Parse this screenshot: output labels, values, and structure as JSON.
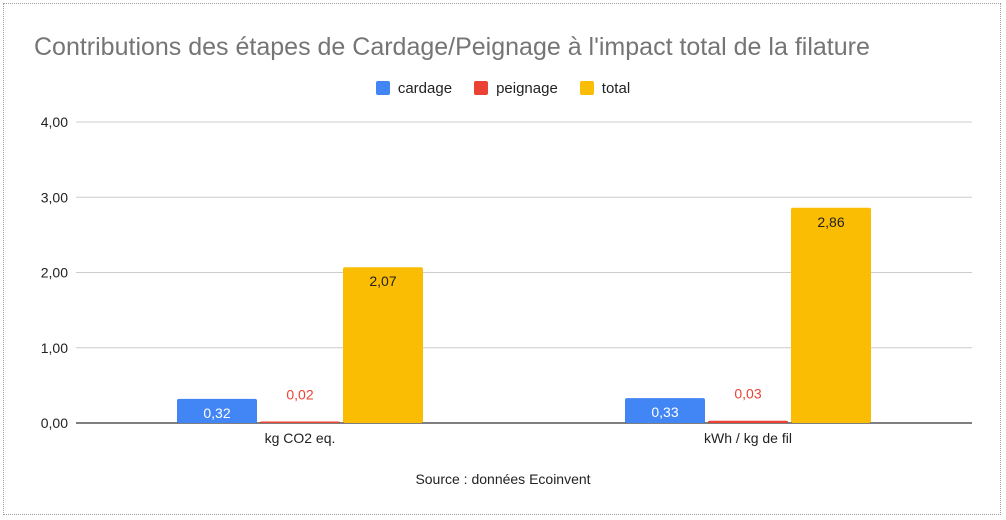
{
  "chart_data": {
    "type": "bar",
    "title": "Contributions des étapes de Cardage/Peignage à l'impact total de la filature",
    "categories": [
      "kg CO2 eq.",
      "kWh / kg de fil"
    ],
    "series": [
      {
        "name": "cardage",
        "values": [
          0.32,
          0.33
        ],
        "labels": [
          "0,32",
          "0,33"
        ],
        "color": "#4285f4",
        "label_color": "#ffffff",
        "label_position": "inside"
      },
      {
        "name": "peignage",
        "values": [
          0.02,
          0.03
        ],
        "labels": [
          "0,02",
          "0,03"
        ],
        "color": "#ea4335",
        "label_color": "#ea4335",
        "label_position": "above"
      },
      {
        "name": "total",
        "values": [
          2.07,
          2.86
        ],
        "labels": [
          "2,07",
          "2,86"
        ],
        "color": "#fbbc04",
        "label_color": "#222222",
        "label_position": "inside"
      }
    ],
    "ylim": [
      0,
      4
    ],
    "yticks": [
      0,
      1,
      2,
      3,
      4
    ],
    "ytick_labels": [
      "0,00",
      "1,00",
      "2,00",
      "3,00",
      "4,00"
    ],
    "grid": true,
    "legend_position": "top",
    "source": "Source : données Ecoinvent"
  }
}
